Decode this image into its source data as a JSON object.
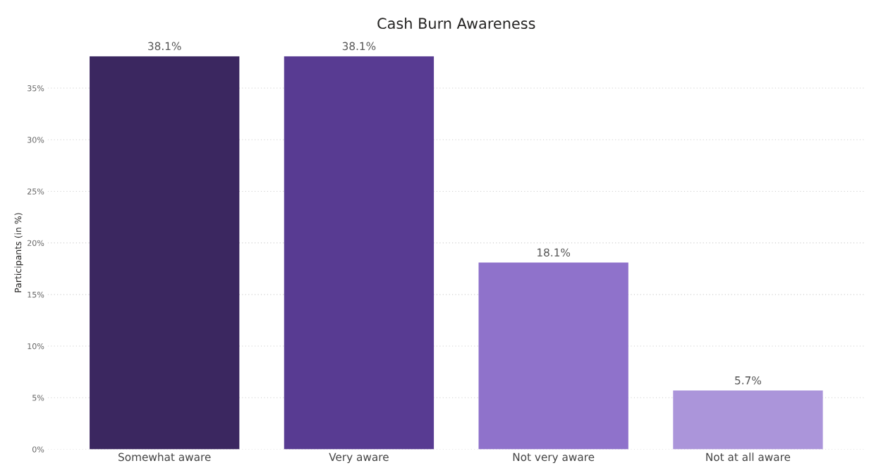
{
  "chart_data": {
    "type": "bar",
    "title": "Cash Burn Awareness",
    "ylabel": "Participants (in %)",
    "categories": [
      "Somewhat aware",
      "Very aware",
      "Not very aware",
      "Not at all aware"
    ],
    "values": [
      38.1,
      38.1,
      18.1,
      5.7
    ],
    "colors": [
      "#3b2760",
      "#583b92",
      "#8f72cb",
      "#ab95da"
    ],
    "value_labels": [
      "38.1%",
      "38.1%",
      "18.1%",
      "5.7%"
    ],
    "ylim": [
      0,
      38.1
    ],
    "yticks": [
      {
        "value": 0,
        "label": "0%"
      },
      {
        "value": 5,
        "label": "5%"
      },
      {
        "value": 10,
        "label": "10%"
      },
      {
        "value": 15,
        "label": "15%"
      },
      {
        "value": 20,
        "label": "20%"
      },
      {
        "value": 25,
        "label": "25%"
      },
      {
        "value": 30,
        "label": "30%"
      },
      {
        "value": 35,
        "label": "35%"
      }
    ],
    "grid": "y"
  }
}
